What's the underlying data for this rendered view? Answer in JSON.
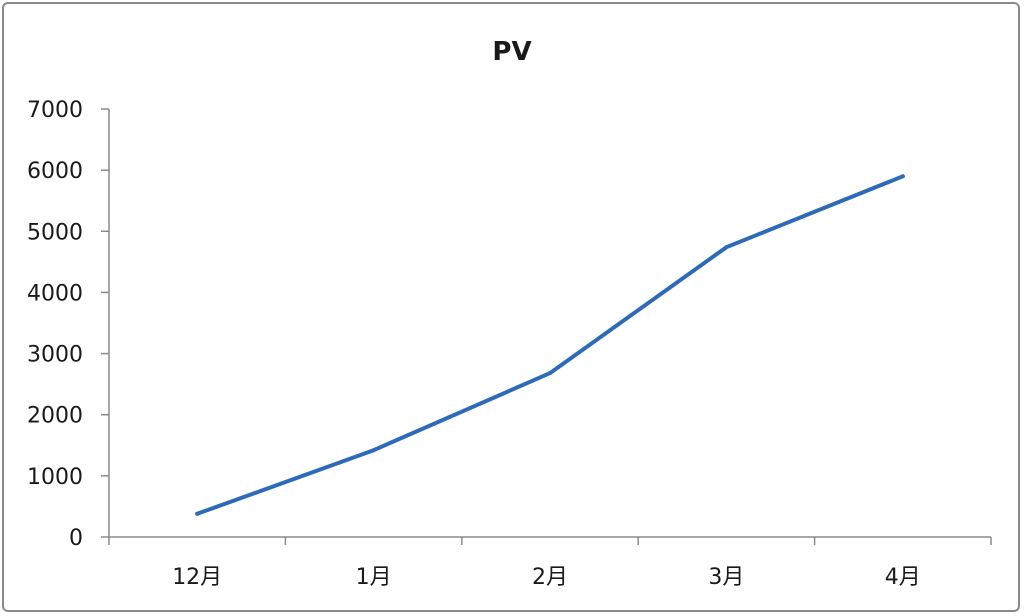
{
  "chart_data": {
    "type": "line",
    "title": "PV",
    "xlabel": "",
    "ylabel": "",
    "categories": [
      "12月",
      "1月",
      "2月",
      "3月",
      "4月"
    ],
    "series": [
      {
        "values": [
          380,
          1420,
          2680,
          4740,
          5900
        ],
        "color": "#2e6ab8"
      }
    ],
    "ylim": [
      0,
      7000
    ],
    "yticks": [
      0,
      1000,
      2000,
      3000,
      4000,
      5000,
      6000,
      7000
    ],
    "ytick_labels": [
      "0",
      "1000",
      "2000",
      "3000",
      "4000",
      "5000",
      "6000",
      "7000"
    ],
    "grid": false,
    "legend": "none"
  }
}
